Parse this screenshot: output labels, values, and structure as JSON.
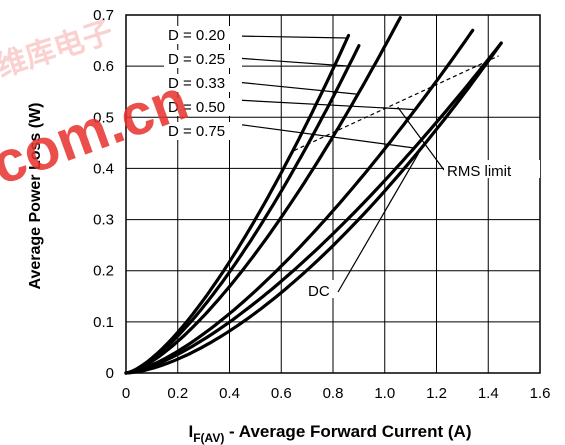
{
  "chart_data": {
    "type": "line",
    "title": "",
    "xlabel": {
      "main": "I",
      "sub": "F(AV)",
      "rest": " - Average Forward Current (A)"
    },
    "ylabel": "Average Power Loss (W)",
    "xlim": [
      0,
      1.6
    ],
    "ylim": [
      0,
      0.7
    ],
    "x_ticks": [
      "0",
      "0.2",
      "0.4",
      "0.6",
      "0.8",
      "1.0",
      "1.2",
      "1.4",
      "1.6"
    ],
    "y_ticks": [
      "0",
      "0.1",
      "0.2",
      "0.3",
      "0.4",
      "0.5",
      "0.6",
      "0.7"
    ],
    "grid": true,
    "series": [
      {
        "name": "D = 0.20",
        "exponent": 1.45,
        "points": [
          [
            0,
            0
          ],
          [
            0.86,
            0.66
          ]
        ]
      },
      {
        "name": "D = 0.25",
        "exponent": 1.45,
        "points": [
          [
            0,
            0
          ],
          [
            0.9,
            0.64
          ]
        ]
      },
      {
        "name": "D = 0.33",
        "exponent": 1.45,
        "points": [
          [
            0,
            0
          ],
          [
            1.06,
            0.695
          ]
        ]
      },
      {
        "name": "D = 0.50",
        "exponent": 1.45,
        "points": [
          [
            0,
            0
          ],
          [
            1.34,
            0.67
          ]
        ]
      },
      {
        "name": "D = 0.75",
        "exponent": 1.45,
        "points": [
          [
            0,
            0
          ],
          [
            1.45,
            0.645
          ]
        ]
      },
      {
        "name": "DC",
        "exponent": 1.6,
        "points": [
          [
            0,
            0
          ],
          [
            1.45,
            0.645
          ]
        ]
      }
    ],
    "rms_limit": {
      "name": "RMS limit",
      "points": [
        [
          0.65,
          0.435
        ],
        [
          1.44,
          0.62
        ]
      ]
    },
    "annotations": [
      "D = 0.20",
      "D = 0.25",
      "D = 0.33",
      "D = 0.50",
      "D = 0.75",
      "DC",
      "RMS limit"
    ]
  },
  "watermark": {
    "text": "com.cn",
    "logo_glyphs": "维库电子"
  }
}
